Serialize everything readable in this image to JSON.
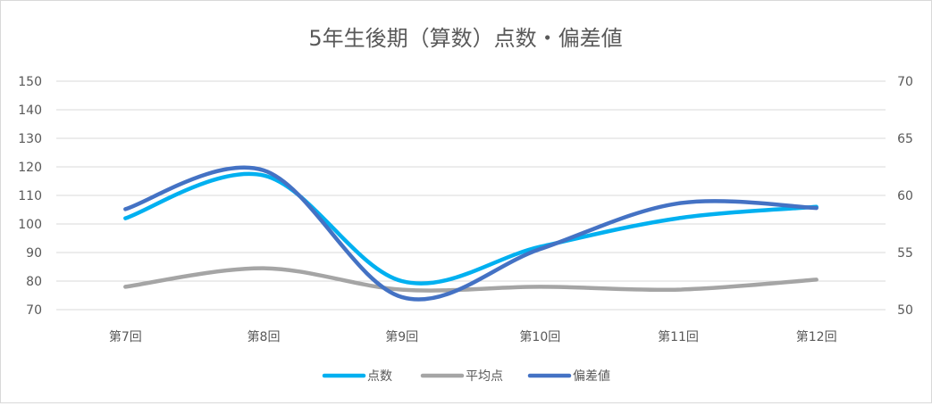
{
  "chart_data": {
    "type": "line",
    "title": "5年生後期（算数）点数・偏差値",
    "categories": [
      "第7回",
      "第8回",
      "第9回",
      "第10回",
      "第11回",
      "第12回"
    ],
    "y_left": {
      "range": [
        70,
        150
      ],
      "ticks": [
        "70",
        "80",
        "90",
        "100",
        "110",
        "120",
        "130",
        "140",
        "150"
      ]
    },
    "y_right": {
      "range": [
        50,
        70
      ],
      "ticks": [
        "50",
        "55",
        "60",
        "65",
        "70"
      ]
    },
    "grid": true,
    "smooth": true,
    "legend_position": "bottom",
    "series": [
      {
        "name": "点数",
        "axis": "left",
        "color": "#00B0F0",
        "values": [
          102,
          117,
          80,
          92,
          102,
          106
        ]
      },
      {
        "name": "平均点",
        "axis": "left",
        "color": "#A5A5A5",
        "values": [
          78,
          84.5,
          77,
          78,
          77,
          80.5
        ]
      },
      {
        "name": "偏差値",
        "axis": "right",
        "color": "#4472C4",
        "values": [
          58.8,
          62.2,
          51.1,
          55.3,
          59.3,
          58.9
        ]
      }
    ]
  }
}
